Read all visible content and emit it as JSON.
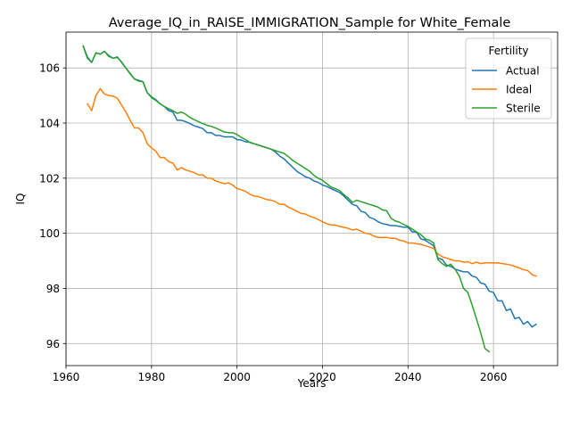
{
  "chart_data": {
    "type": "line",
    "title": "Average_IQ_in_RAISE_IMMIGRATION_Sample for White_Female",
    "xlabel": "Years",
    "ylabel": "IQ",
    "xlim": [
      1960,
      2075
    ],
    "ylim": [
      95.2,
      107.3
    ],
    "xticks": [
      1960,
      1980,
      2000,
      2020,
      2040,
      2060
    ],
    "yticks": [
      96,
      98,
      100,
      102,
      104,
      106
    ],
    "grid": true,
    "legend": {
      "title": "Fertility",
      "position": "top-right"
    },
    "series": [
      {
        "name": "Actual",
        "color": "#1f77b4",
        "x": [
          1964,
          1965,
          1966,
          1967,
          1968,
          1969,
          1970,
          1971,
          1972,
          1973,
          1974,
          1975,
          1976,
          1977,
          1978,
          1979,
          1980,
          1981,
          1982,
          1983,
          1984,
          1985,
          1986,
          1987,
          1988,
          1989,
          1990,
          1991,
          1992,
          1993,
          1994,
          1995,
          1996,
          1997,
          1998,
          1999,
          2000,
          2001,
          2002,
          2003,
          2004,
          2005,
          2006,
          2007,
          2008,
          2009,
          2010,
          2011,
          2012,
          2013,
          2014,
          2015,
          2016,
          2017,
          2018,
          2019,
          2020,
          2021,
          2022,
          2023,
          2024,
          2025,
          2026,
          2027,
          2028,
          2029,
          2030,
          2031,
          2032,
          2033,
          2034,
          2035,
          2036,
          2037,
          2038,
          2039,
          2040,
          2041,
          2042,
          2043,
          2044,
          2045,
          2046,
          2047,
          2048,
          2049,
          2050,
          2051,
          2052,
          2053,
          2054,
          2055,
          2056,
          2057,
          2058,
          2059,
          2060,
          2061,
          2062,
          2063,
          2064,
          2065,
          2066,
          2067,
          2068,
          2069,
          2070
        ],
        "values": [
          106.8,
          106.4,
          106.2,
          106.55,
          106.5,
          106.6,
          106.45,
          106.35,
          106.4,
          106.2,
          106.0,
          105.8,
          105.6,
          105.55,
          105.5,
          105.1,
          104.95,
          104.85,
          104.7,
          104.6,
          104.45,
          104.4,
          104.1,
          104.1,
          104.05,
          103.98,
          103.9,
          103.85,
          103.8,
          103.65,
          103.65,
          103.55,
          103.55,
          103.5,
          103.5,
          103.5,
          103.4,
          103.38,
          103.32,
          103.3,
          103.25,
          103.2,
          103.15,
          103.1,
          103.05,
          102.95,
          102.8,
          102.7,
          102.55,
          102.4,
          102.25,
          102.15,
          102.05,
          102.0,
          101.9,
          101.85,
          101.75,
          101.7,
          101.62,
          101.55,
          101.48,
          101.35,
          101.2,
          101.05,
          101.0,
          100.8,
          100.75,
          100.58,
          100.52,
          100.42,
          100.35,
          100.32,
          100.28,
          100.28,
          100.25,
          100.22,
          100.22,
          100.05,
          100.05,
          99.8,
          99.75,
          99.65,
          99.55,
          99.1,
          99.05,
          98.85,
          98.8,
          98.7,
          98.65,
          98.6,
          98.6,
          98.45,
          98.4,
          98.2,
          98.15,
          97.9,
          97.85,
          97.55,
          97.55,
          97.2,
          97.25,
          96.9,
          96.95,
          96.7,
          96.8,
          96.6,
          96.7
        ]
      },
      {
        "name": "Ideal",
        "color": "#ff7f0e",
        "x": [
          1965,
          1966,
          1967,
          1968,
          1969,
          1970,
          1971,
          1972,
          1973,
          1974,
          1975,
          1976,
          1977,
          1978,
          1979,
          1980,
          1981,
          1982,
          1983,
          1984,
          1985,
          1986,
          1987,
          1988,
          1989,
          1990,
          1991,
          1992,
          1993,
          1994,
          1995,
          1996,
          1997,
          1998,
          1999,
          2000,
          2001,
          2002,
          2003,
          2004,
          2005,
          2006,
          2007,
          2008,
          2009,
          2010,
          2011,
          2012,
          2013,
          2014,
          2015,
          2016,
          2017,
          2018,
          2019,
          2020,
          2021,
          2022,
          2023,
          2024,
          2025,
          2026,
          2027,
          2028,
          2029,
          2030,
          2031,
          2032,
          2033,
          2034,
          2035,
          2036,
          2037,
          2038,
          2039,
          2040,
          2041,
          2042,
          2043,
          2044,
          2045,
          2046,
          2047,
          2048,
          2049,
          2050,
          2051,
          2052,
          2053,
          2054,
          2055,
          2056,
          2057,
          2058,
          2059,
          2060,
          2061,
          2062,
          2063,
          2064,
          2065,
          2066,
          2067,
          2068,
          2069,
          2070
        ],
        "values": [
          104.7,
          104.45,
          105.0,
          105.25,
          105.05,
          105.0,
          104.98,
          104.9,
          104.65,
          104.4,
          104.1,
          103.82,
          103.82,
          103.65,
          103.25,
          103.1,
          102.98,
          102.75,
          102.75,
          102.6,
          102.55,
          102.3,
          102.38,
          102.3,
          102.25,
          102.2,
          102.12,
          102.12,
          102.0,
          102.0,
          101.9,
          101.85,
          101.8,
          101.83,
          101.75,
          101.62,
          101.58,
          101.52,
          101.42,
          101.35,
          101.33,
          101.28,
          101.22,
          101.2,
          101.15,
          101.05,
          101.05,
          100.95,
          100.88,
          100.8,
          100.72,
          100.7,
          100.62,
          100.57,
          100.5,
          100.42,
          100.35,
          100.3,
          100.3,
          100.25,
          100.22,
          100.18,
          100.12,
          100.15,
          100.08,
          100.0,
          99.98,
          99.9,
          99.85,
          99.85,
          99.85,
          99.82,
          99.82,
          99.75,
          99.72,
          99.65,
          99.65,
          99.62,
          99.6,
          99.55,
          99.5,
          99.45,
          99.25,
          99.15,
          99.1,
          99.05,
          99.0,
          99.0,
          98.95,
          98.97,
          98.9,
          98.95,
          98.9,
          98.93,
          98.93,
          98.92,
          98.93,
          98.9,
          98.88,
          98.85,
          98.8,
          98.75,
          98.68,
          98.65,
          98.5,
          98.45
        ]
      },
      {
        "name": "Sterile",
        "color": "#2ca02c",
        "x": [
          1964,
          1965,
          1966,
          1967,
          1968,
          1969,
          1970,
          1971,
          1972,
          1973,
          1974,
          1975,
          1976,
          1977,
          1978,
          1979,
          1980,
          1981,
          1982,
          1983,
          1984,
          1985,
          1986,
          1987,
          1988,
          1989,
          1990,
          1991,
          1992,
          1993,
          1994,
          1995,
          1996,
          1997,
          1998,
          1999,
          2000,
          2001,
          2002,
          2003,
          2004,
          2005,
          2006,
          2007,
          2008,
          2009,
          2010,
          2011,
          2012,
          2013,
          2014,
          2015,
          2016,
          2017,
          2018,
          2019,
          2020,
          2021,
          2022,
          2023,
          2024,
          2025,
          2026,
          2027,
          2028,
          2029,
          2030,
          2031,
          2032,
          2033,
          2034,
          2035,
          2036,
          2037,
          2038,
          2039,
          2040,
          2041,
          2042,
          2043,
          2044,
          2045,
          2046,
          2047,
          2048,
          2049,
          2050,
          2051,
          2052,
          2053,
          2054,
          2055,
          2056,
          2057,
          2058,
          2059
        ],
        "values": [
          106.8,
          106.35,
          106.2,
          106.55,
          106.5,
          106.6,
          106.42,
          106.35,
          106.38,
          106.22,
          106.0,
          105.78,
          105.6,
          105.52,
          105.5,
          105.1,
          104.92,
          104.82,
          104.7,
          104.6,
          104.52,
          104.45,
          104.35,
          104.4,
          104.32,
          104.2,
          104.12,
          104.05,
          103.98,
          103.92,
          103.88,
          103.82,
          103.75,
          103.68,
          103.65,
          103.65,
          103.58,
          103.48,
          103.4,
          103.3,
          103.25,
          103.2,
          103.15,
          103.1,
          103.05,
          103.0,
          102.95,
          102.9,
          102.78,
          102.65,
          102.55,
          102.45,
          102.35,
          102.25,
          102.1,
          102.0,
          101.92,
          101.8,
          101.68,
          101.62,
          101.55,
          101.4,
          101.28,
          101.12,
          101.2,
          101.15,
          101.1,
          101.05,
          101.0,
          100.95,
          100.85,
          100.82,
          100.55,
          100.45,
          100.4,
          100.32,
          100.25,
          100.15,
          100.05,
          99.95,
          99.8,
          99.75,
          99.65,
          99.05,
          98.9,
          98.8,
          98.88,
          98.7,
          98.45,
          98.0,
          97.85,
          97.4,
          96.9,
          96.4,
          95.82,
          95.7
        ]
      }
    ]
  }
}
